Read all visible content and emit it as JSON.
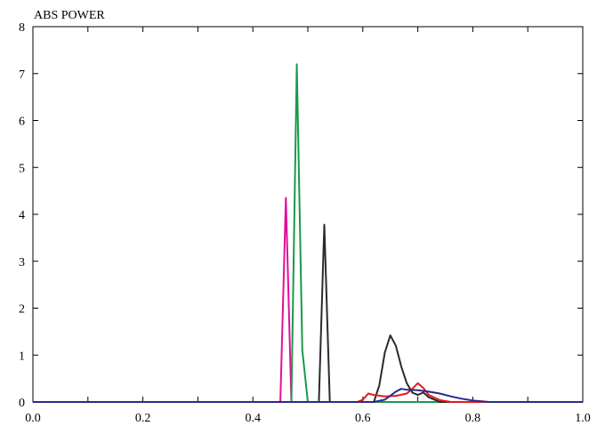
{
  "chart_data": {
    "type": "line",
    "title": "ABS POWER",
    "xlabel": "",
    "ylabel": "",
    "xlim": [
      0.0,
      1.0
    ],
    "ylim": [
      0,
      8
    ],
    "x_ticks": [
      0.0,
      0.2,
      0.4,
      0.6,
      0.8,
      1.0
    ],
    "x_tick_labels": [
      "0.0",
      "0.2",
      "0.4",
      "0.6",
      "0.8",
      "1.0"
    ],
    "y_ticks": [
      0,
      1,
      2,
      3,
      4,
      5,
      6,
      7,
      8
    ],
    "y_tick_labels": [
      "0",
      "1",
      "2",
      "3",
      "4",
      "5",
      "6",
      "7",
      "8"
    ],
    "grid": false,
    "legend": "none",
    "series": [
      {
        "color": "#e0109a",
        "points": [
          [
            0.0,
            0
          ],
          [
            0.45,
            0
          ],
          [
            0.46,
            4.35
          ],
          [
            0.47,
            0
          ],
          [
            1.0,
            0
          ]
        ]
      },
      {
        "color": "#1a9a4a",
        "points": [
          [
            0.0,
            0
          ],
          [
            0.47,
            0
          ],
          [
            0.48,
            7.2
          ],
          [
            0.49,
            1.1
          ],
          [
            0.5,
            0
          ],
          [
            1.0,
            0
          ]
        ]
      },
      {
        "color": "#2b2b2b",
        "points": [
          [
            0.0,
            0
          ],
          [
            0.52,
            0
          ],
          [
            0.53,
            3.78
          ],
          [
            0.54,
            0
          ],
          [
            0.62,
            0
          ],
          [
            0.63,
            0.35
          ],
          [
            0.64,
            1.05
          ],
          [
            0.65,
            1.42
          ],
          [
            0.66,
            1.2
          ],
          [
            0.67,
            0.75
          ],
          [
            0.68,
            0.4
          ],
          [
            0.69,
            0.2
          ],
          [
            0.7,
            0.15
          ],
          [
            0.71,
            0.2
          ],
          [
            0.72,
            0.1
          ],
          [
            0.74,
            0
          ],
          [
            1.0,
            0
          ]
        ]
      },
      {
        "color": "#e41a1a",
        "points": [
          [
            0.0,
            0
          ],
          [
            0.59,
            0
          ],
          [
            0.6,
            0.05
          ],
          [
            0.61,
            0.18
          ],
          [
            0.62,
            0.15
          ],
          [
            0.64,
            0.12
          ],
          [
            0.66,
            0.13
          ],
          [
            0.68,
            0.18
          ],
          [
            0.69,
            0.28
          ],
          [
            0.7,
            0.4
          ],
          [
            0.71,
            0.3
          ],
          [
            0.72,
            0.15
          ],
          [
            0.74,
            0.04
          ],
          [
            0.76,
            0
          ],
          [
            1.0,
            0
          ]
        ]
      },
      {
        "color": "#2a2a8c",
        "points": [
          [
            0.0,
            0
          ],
          [
            0.62,
            0
          ],
          [
            0.64,
            0.05
          ],
          [
            0.66,
            0.22
          ],
          [
            0.67,
            0.28
          ],
          [
            0.68,
            0.26
          ],
          [
            0.7,
            0.25
          ],
          [
            0.72,
            0.22
          ],
          [
            0.74,
            0.18
          ],
          [
            0.76,
            0.12
          ],
          [
            0.78,
            0.07
          ],
          [
            0.8,
            0.03
          ],
          [
            0.83,
            0
          ],
          [
            1.0,
            0
          ]
        ]
      }
    ]
  }
}
